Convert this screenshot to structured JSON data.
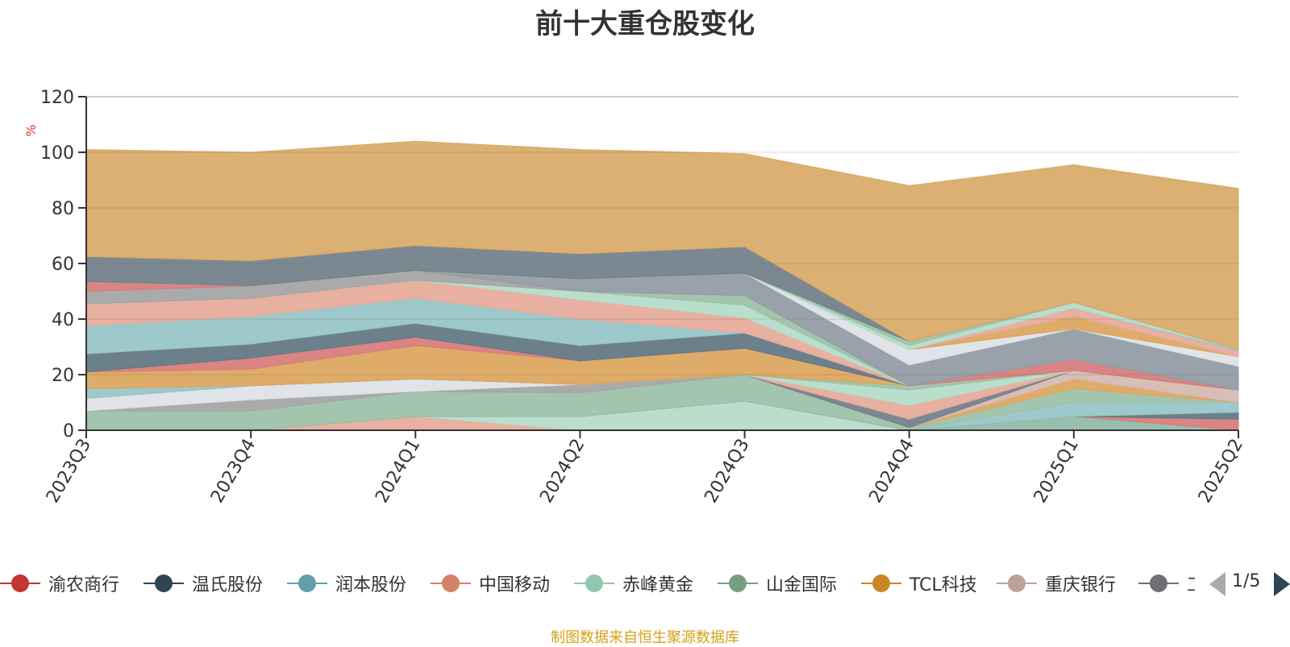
{
  "chart_data": {
    "type": "area",
    "stacked": true,
    "title": "前十大重仓股变化",
    "ylabel": "%",
    "ylim": [
      0,
      120
    ],
    "yticks": [
      0,
      20,
      40,
      60,
      80,
      100,
      120
    ],
    "categories": [
      "2023Q3",
      "2023Q4",
      "2024Q1",
      "2024Q2",
      "2024Q3",
      "2024Q4",
      "2025Q1",
      "2025Q2"
    ],
    "grid": true,
    "legend_position": "bottom",
    "series": [
      {
        "name": "",
        "color": "#e5a999",
        "values": [
          0,
          0,
          5,
          0,
          0,
          0,
          0,
          0
        ]
      },
      {
        "name": "",
        "color": "#b3dcc8",
        "values": [
          0,
          0,
          0,
          5,
          10.5,
          0,
          0,
          0
        ]
      },
      {
        "name": "",
        "color": "#8fb8a6",
        "values": [
          0,
          0,
          0,
          0,
          0,
          0,
          5,
          0
        ]
      },
      {
        "name": "渝农商行",
        "color": "#d77a7a",
        "values": [
          0,
          0,
          0,
          0,
          0,
          0,
          0,
          4
        ]
      },
      {
        "name": "温氏股份",
        "color": "#607582",
        "values": [
          0,
          0,
          0,
          0,
          0,
          0,
          0,
          2.5
        ]
      },
      {
        "name": "润本股份",
        "color": "#96c4c8",
        "values": [
          0,
          0,
          0,
          0,
          0,
          0,
          5,
          3.5
        ]
      },
      {
        "name": "山金国际",
        "color": "#9bbfa6",
        "values": [
          7,
          7,
          9,
          8.5,
          9.5,
          1,
          5,
          0
        ]
      },
      {
        "name": "",
        "color": "#a3a3a3",
        "values": [
          0,
          4,
          0,
          3,
          0,
          0,
          0,
          0
        ]
      },
      {
        "name": "",
        "color": "#dde1e6",
        "values": [
          4.5,
          5,
          4.5,
          0,
          0,
          0,
          0,
          0
        ]
      },
      {
        "name": "TCL科技",
        "color": "#dba45c",
        "values": [
          0,
          0,
          0,
          0,
          0,
          0,
          3.5,
          0
        ]
      },
      {
        "name": "重庆银行",
        "color": "#d4b8b0",
        "values": [
          0,
          0,
          0,
          0,
          0,
          0,
          3,
          4.5
        ]
      },
      {
        "name": "",
        "color": "#707e89",
        "values": [
          0,
          0,
          0,
          0,
          0,
          3,
          0,
          0
        ]
      },
      {
        "name": "",
        "color": "#e5a999",
        "values": [
          0,
          0,
          0,
          0,
          0,
          5,
          0,
          0
        ]
      },
      {
        "name": "",
        "color": "#b3dcc8",
        "values": [
          0,
          0,
          0,
          0,
          0,
          5.5,
          0,
          0
        ]
      },
      {
        "name": "",
        "color": "#9bbfa6",
        "values": [
          0,
          0,
          0,
          0,
          0,
          1.5,
          0,
          0
        ]
      },
      {
        "name": "",
        "color": "#96c4c8",
        "values": [
          3.5,
          0,
          0,
          0,
          0,
          0,
          0,
          0
        ]
      },
      {
        "name": "",
        "color": "#dba45c",
        "values": [
          6,
          6,
          12,
          8.5,
          9.5,
          0,
          0,
          0
        ]
      },
      {
        "name": "",
        "color": "#d77a7a",
        "values": [
          0,
          4,
          3,
          0,
          0,
          0,
          4,
          0
        ]
      },
      {
        "name": "",
        "color": "#607582",
        "values": [
          6.5,
          5,
          5,
          5.5,
          5.5,
          0,
          0,
          0
        ]
      },
      {
        "name": "",
        "color": "#96c4c8",
        "values": [
          10,
          10,
          9,
          9.5,
          0,
          0,
          0,
          0
        ]
      },
      {
        "name": "",
        "color": "#e5a999",
        "values": [
          8,
          6.5,
          6.5,
          7,
          5.5,
          0,
          0,
          0
        ]
      },
      {
        "name": "",
        "color": "#b3dcc8",
        "values": [
          0,
          0,
          0,
          3,
          4.5,
          0,
          0,
          0
        ]
      },
      {
        "name": "",
        "color": "#9bbfa6",
        "values": [
          0,
          0,
          0,
          0,
          3.5,
          0,
          0,
          0
        ]
      },
      {
        "name": "",
        "color": "#a3a3a3",
        "values": [
          4.5,
          4.5,
          3.5,
          0,
          0,
          0,
          0,
          0
        ]
      },
      {
        "name": "",
        "color": "#d77a7a",
        "values": [
          3.5,
          0,
          0,
          0,
          0,
          0,
          0,
          0
        ]
      },
      {
        "name": "",
        "color": "#909aa3",
        "values": [
          0,
          0,
          0,
          4.5,
          8,
          7.5,
          11,
          8.5
        ]
      },
      {
        "name": "",
        "color": "#dde1e6",
        "values": [
          0,
          0,
          0,
          0,
          0,
          5.5,
          0,
          3.5
        ]
      },
      {
        "name": "",
        "color": "#dba45c",
        "values": [
          0,
          0,
          0,
          0,
          0,
          0,
          4.5,
          0
        ]
      },
      {
        "name": "",
        "color": "#e5a999",
        "values": [
          0,
          0,
          0,
          0,
          0,
          0,
          3,
          2
        ]
      },
      {
        "name": "",
        "color": "#96c4c8",
        "values": [
          0,
          0,
          0,
          0,
          0,
          0,
          0,
          0.5
        ]
      },
      {
        "name": "",
        "color": "#b3dcc8",
        "values": [
          0,
          0,
          0,
          0,
          0,
          1.5,
          2,
          0
        ]
      },
      {
        "name": "",
        "color": "#9bbfa6",
        "values": [
          0,
          0,
          0,
          0,
          0,
          1.5,
          0,
          0
        ]
      },
      {
        "name": "",
        "color": "#707e89",
        "values": [
          9,
          9,
          9,
          9,
          9.5,
          0,
          0,
          0
        ]
      },
      {
        "name": "",
        "color": "#d8a966",
        "values": [
          38.5,
          39,
          37.5,
          37.5,
          33.5,
          56,
          49.5,
          58
        ]
      }
    ]
  },
  "legend": {
    "items": [
      {
        "label": "渝农商行",
        "color": "#c23531"
      },
      {
        "label": "温氏股份",
        "color": "#2f4554"
      },
      {
        "label": "润本股份",
        "color": "#61a0a8"
      },
      {
        "label": "中国移动",
        "color": "#d48265"
      },
      {
        "label": "赤峰黄金",
        "color": "#91c7ae"
      },
      {
        "label": "山金国际",
        "color": "#749f83"
      },
      {
        "label": "TCL科技",
        "color": "#ca8622"
      },
      {
        "label": "重庆银行",
        "color": "#bda29a"
      },
      {
        "label": "工",
        "color": "#6e7074"
      }
    ],
    "page_indicator": "1/5"
  },
  "source_note": "制图数据来自恒生聚源数据库"
}
